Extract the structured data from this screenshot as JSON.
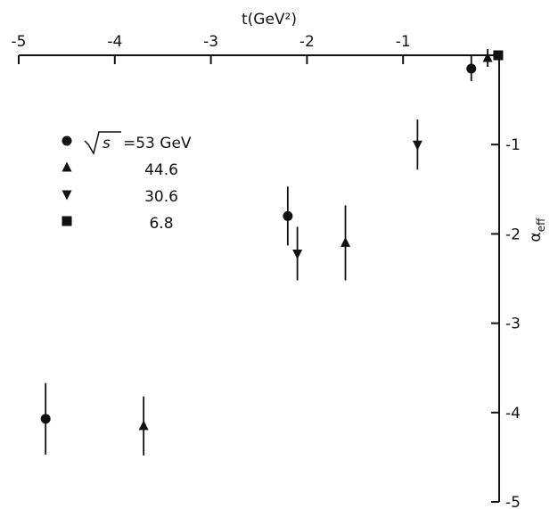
{
  "chart_data": {
    "type": "scatter",
    "title": "",
    "xlabel": "t(GeV²)",
    "ylabel": "α_eff",
    "xlim": [
      -5,
      0
    ],
    "ylim": [
      -5,
      0
    ],
    "x_axis_position": "top",
    "y_axis_position": "right",
    "x_ticks": [
      -5,
      -4,
      -3,
      -2,
      -1
    ],
    "x_tick_labels": [
      "-5",
      "-4",
      "-3",
      "-2",
      "-1"
    ],
    "y_ticks": [
      -1,
      -2,
      -3,
      -4,
      -5
    ],
    "y_tick_labels": [
      "-1",
      "-2",
      "-3",
      "-4",
      "-5"
    ],
    "grid": false,
    "legend_position": "top-left",
    "series": [
      {
        "name": "√s = 53 GeV",
        "legend_label": "=53 GeV",
        "marker": "circle",
        "points": [
          {
            "x": -0.29,
            "y": -0.15,
            "err": 0.14
          },
          {
            "x": -2.2,
            "y": -1.8,
            "err": 0.33
          },
          {
            "x": -4.72,
            "y": -4.07,
            "err": 0.4
          }
        ]
      },
      {
        "name": "44.6",
        "legend_label": "44.6",
        "marker": "triangle-up",
        "points": [
          {
            "x": -0.12,
            "y": -0.03,
            "err": 0.1
          },
          {
            "x": -1.6,
            "y": -2.1,
            "err": 0.42
          },
          {
            "x": -3.7,
            "y": -4.15,
            "err": 0.33
          }
        ]
      },
      {
        "name": "30.6",
        "legend_label": "30.6",
        "marker": "triangle-down",
        "points": [
          {
            "x": -0.85,
            "y": -1.0,
            "err": 0.28
          },
          {
            "x": -2.1,
            "y": -2.22,
            "err": 0.3
          }
        ]
      },
      {
        "name": "6.8",
        "legend_label": "6.8",
        "marker": "square",
        "points": [
          {
            "x": -0.01,
            "y": 0.0,
            "err": 0.03
          }
        ]
      }
    ]
  }
}
